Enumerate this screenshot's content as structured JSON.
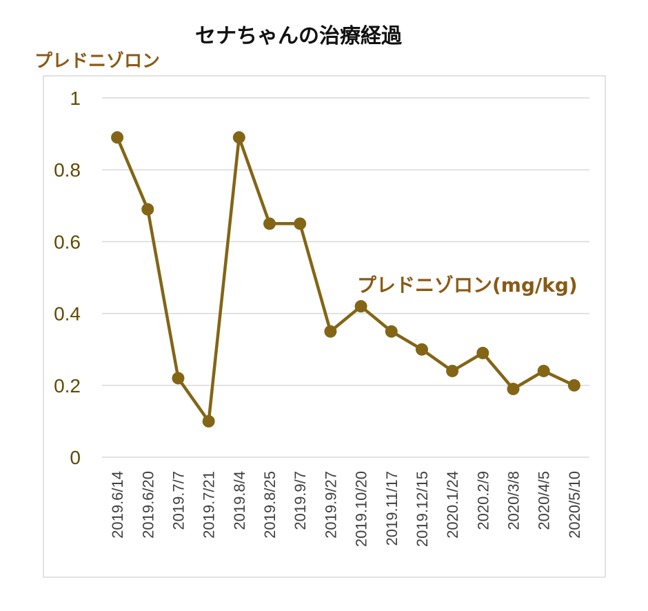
{
  "chart_data": {
    "type": "line",
    "title": "セナちゃんの治療経過",
    "ylabel": "プレドニゾロン",
    "xlabel": "",
    "ylim": [
      0,
      1
    ],
    "yticks": [
      "0",
      "0.2",
      "0.4",
      "0.6",
      "0.8",
      "1"
    ],
    "grid": true,
    "categories": [
      "2019.6/14",
      "2019.6/20",
      "2019.7/7",
      "2019.7/21",
      "2019.8/4",
      "2019.8/25",
      "2019.9/7",
      "2019.9/27",
      "2019.10/20",
      "2019.11/17",
      "2019.12/15",
      "2020.1/24",
      "2020.2/9",
      "2020/3/8",
      "2020/4/5",
      "2020/5/10"
    ],
    "series": [
      {
        "name": "プレドニゾロン(mg/kg)",
        "color": "#836515",
        "values": [
          0.89,
          0.69,
          0.22,
          0.1,
          0.89,
          0.65,
          0.65,
          0.35,
          0.42,
          0.35,
          0.3,
          0.24,
          0.29,
          0.19,
          0.24,
          0.2
        ]
      }
    ],
    "label_color": "#8a5a14"
  }
}
